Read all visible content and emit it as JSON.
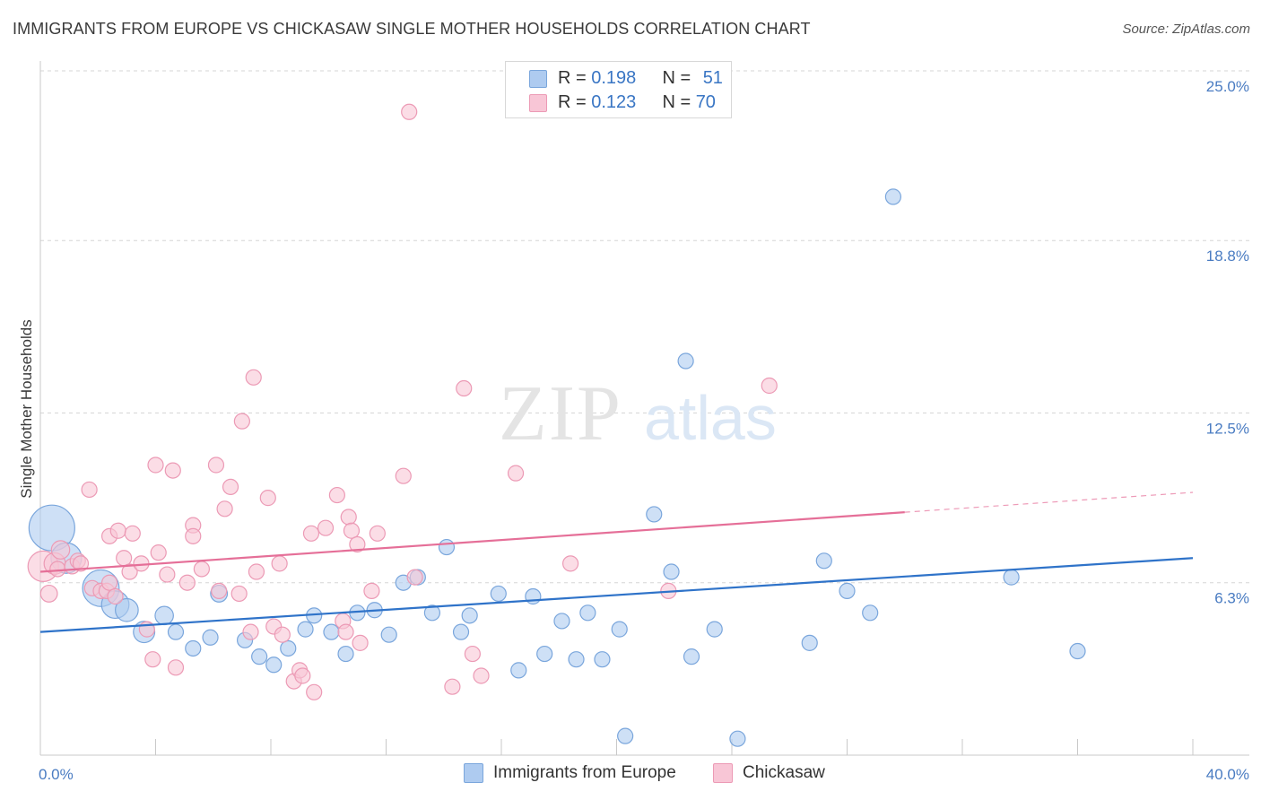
{
  "header": {
    "title": "IMMIGRANTS FROM EUROPE VS CHICKASAW SINGLE MOTHER HOUSEHOLDS CORRELATION CHART",
    "source": "Source: ZipAtlas.com"
  },
  "watermark": {
    "zip": "ZIP",
    "atlas": "atlas"
  },
  "legend_top": {
    "rows": [
      {
        "r_label": "R = ",
        "r_value": "0.198",
        "n_label": "N = ",
        "n_value": "51"
      },
      {
        "r_label": "R = ",
        "r_value": "0.123",
        "n_label": "N = ",
        "n_value": "70"
      }
    ]
  },
  "legend_bottom": {
    "items": [
      "Immigrants from Europe",
      "Chickasaw"
    ]
  },
  "colors": {
    "blue_fill": "#aecbf0",
    "blue_stroke": "#7aa6dc",
    "blue_line": "#2f73c9",
    "pink_fill": "#f8c6d6",
    "pink_stroke": "#ec9ab5",
    "pink_line": "#e56f98",
    "tick_text": "#4a7cc2",
    "grid": "#d6d6d6"
  },
  "chart_data": {
    "type": "scatter",
    "title": "IMMIGRANTS FROM EUROPE VS CHICKASAW SINGLE MOTHER HOUSEHOLDS CORRELATION CHART",
    "xlabel": "",
    "ylabel": "Single Mother Households",
    "xlim": [
      0,
      40
    ],
    "ylim": [
      0,
      25
    ],
    "x_tick_labels": [
      "0.0%",
      "40.0%"
    ],
    "y_ticks": [
      6.3,
      12.5,
      18.8,
      25.0
    ],
    "y_tick_labels": [
      "6.3%",
      "12.5%",
      "18.8%",
      "25.0%"
    ],
    "grid": "horizontal dashed",
    "legend_position": "top-center",
    "series": [
      {
        "name": "Immigrants from Europe",
        "r": 0.198,
        "n": 51,
        "trend": {
          "x": [
            0,
            40
          ],
          "y": [
            4.5,
            7.2
          ],
          "dashed_from": null
        },
        "points": [
          [
            0.4,
            8.3,
            3
          ],
          [
            0.9,
            7.2,
            2
          ],
          [
            2.1,
            6.1,
            2.4
          ],
          [
            2.6,
            5.5,
            1.8
          ],
          [
            3.0,
            5.3,
            1.5
          ],
          [
            3.6,
            4.5,
            1.4
          ],
          [
            4.3,
            5.1,
            1.2
          ],
          [
            4.7,
            4.5,
            1
          ],
          [
            5.3,
            3.9,
            1
          ],
          [
            5.9,
            4.3,
            1
          ],
          [
            6.2,
            5.9,
            1.1
          ],
          [
            7.1,
            4.2,
            1
          ],
          [
            7.6,
            3.6,
            1
          ],
          [
            8.1,
            3.3,
            1
          ],
          [
            8.6,
            3.9,
            1
          ],
          [
            9.2,
            4.6,
            1
          ],
          [
            9.5,
            5.1,
            1
          ],
          [
            10.1,
            4.5,
            1
          ],
          [
            10.6,
            3.7,
            1
          ],
          [
            11.0,
            5.2,
            1
          ],
          [
            11.6,
            5.3,
            1
          ],
          [
            12.1,
            4.4,
            1
          ],
          [
            12.6,
            6.3,
            1
          ],
          [
            13.1,
            6.5,
            1
          ],
          [
            13.6,
            5.2,
            1
          ],
          [
            14.1,
            7.6,
            1
          ],
          [
            14.6,
            4.5,
            1
          ],
          [
            14.9,
            5.1,
            1
          ],
          [
            15.9,
            5.9,
            1
          ],
          [
            16.6,
            3.1,
            1
          ],
          [
            17.1,
            5.8,
            1
          ],
          [
            17.5,
            3.7,
            1
          ],
          [
            18.1,
            4.9,
            1
          ],
          [
            18.6,
            3.5,
            1
          ],
          [
            19.0,
            5.2,
            1
          ],
          [
            19.5,
            3.5,
            1
          ],
          [
            20.1,
            4.6,
            1
          ],
          [
            20.3,
            0.7,
            1
          ],
          [
            21.3,
            8.8,
            1
          ],
          [
            21.9,
            6.7,
            1
          ],
          [
            22.4,
            14.4,
            1
          ],
          [
            22.6,
            3.6,
            1
          ],
          [
            23.4,
            4.6,
            1
          ],
          [
            24.2,
            0.6,
            1
          ],
          [
            26.7,
            4.1,
            1
          ],
          [
            27.2,
            7.1,
            1
          ],
          [
            28.0,
            6.0,
            1
          ],
          [
            28.8,
            5.2,
            1
          ],
          [
            29.6,
            20.4,
            1
          ],
          [
            33.7,
            6.5,
            1
          ],
          [
            36.0,
            3.8,
            1
          ]
        ]
      },
      {
        "name": "Chickasaw",
        "r": 0.123,
        "n": 70,
        "trend": {
          "x": [
            0,
            40
          ],
          "y": [
            6.7,
            9.6
          ],
          "dashed_from": 30
        },
        "points": [
          [
            0.1,
            6.9,
            2
          ],
          [
            0.3,
            5.9,
            1.1
          ],
          [
            0.5,
            7.0,
            1.4
          ],
          [
            0.6,
            6.8,
            1
          ],
          [
            0.7,
            7.5,
            1.2
          ],
          [
            1.1,
            6.9,
            1
          ],
          [
            1.3,
            7.1,
            1
          ],
          [
            1.4,
            7.0,
            1
          ],
          [
            1.7,
            9.7,
            1
          ],
          [
            1.8,
            6.1,
            1
          ],
          [
            2.1,
            6.0,
            1
          ],
          [
            2.3,
            6.0,
            1
          ],
          [
            2.4,
            6.3,
            1
          ],
          [
            2.4,
            8.0,
            1
          ],
          [
            2.6,
            5.8,
            1
          ],
          [
            2.7,
            8.2,
            1
          ],
          [
            2.9,
            7.2,
            1
          ],
          [
            3.1,
            6.7,
            1
          ],
          [
            3.2,
            8.1,
            1
          ],
          [
            3.5,
            7.0,
            1
          ],
          [
            3.7,
            4.6,
            1
          ],
          [
            3.9,
            3.5,
            1
          ],
          [
            4.0,
            10.6,
            1
          ],
          [
            4.1,
            7.4,
            1
          ],
          [
            4.4,
            6.6,
            1
          ],
          [
            4.6,
            10.4,
            1
          ],
          [
            4.7,
            3.2,
            1
          ],
          [
            5.1,
            6.3,
            1
          ],
          [
            5.3,
            8.4,
            1
          ],
          [
            5.3,
            8.0,
            1
          ],
          [
            5.6,
            6.8,
            1
          ],
          [
            6.1,
            10.6,
            1
          ],
          [
            6.2,
            6.0,
            1
          ],
          [
            6.4,
            9.0,
            1
          ],
          [
            6.6,
            9.8,
            1
          ],
          [
            6.9,
            5.9,
            1
          ],
          [
            7.0,
            12.2,
            1
          ],
          [
            7.3,
            4.5,
            1
          ],
          [
            7.4,
            13.8,
            1
          ],
          [
            7.5,
            6.7,
            1
          ],
          [
            7.9,
            9.4,
            1
          ],
          [
            8.1,
            4.7,
            1
          ],
          [
            8.3,
            7.0,
            1
          ],
          [
            8.4,
            4.4,
            1
          ],
          [
            8.8,
            2.7,
            1
          ],
          [
            9.0,
            3.1,
            1
          ],
          [
            9.1,
            2.9,
            1
          ],
          [
            9.4,
            8.1,
            1
          ],
          [
            9.5,
            2.3,
            1
          ],
          [
            9.9,
            8.3,
            1
          ],
          [
            10.3,
            9.5,
            1
          ],
          [
            10.5,
            4.9,
            1
          ],
          [
            10.6,
            4.5,
            1
          ],
          [
            10.7,
            8.7,
            1
          ],
          [
            10.8,
            8.2,
            1
          ],
          [
            11.0,
            7.7,
            1
          ],
          [
            11.1,
            4.1,
            1
          ],
          [
            11.5,
            6.0,
            1
          ],
          [
            11.7,
            8.1,
            1
          ],
          [
            12.6,
            10.2,
            1
          ],
          [
            12.8,
            23.5,
            1
          ],
          [
            13.0,
            6.5,
            1
          ],
          [
            14.3,
            2.5,
            1
          ],
          [
            14.7,
            13.4,
            1
          ],
          [
            15.0,
            3.7,
            1
          ],
          [
            15.3,
            2.9,
            1
          ],
          [
            16.5,
            10.3,
            1
          ],
          [
            18.4,
            7.0,
            1
          ],
          [
            21.8,
            6.0,
            1
          ],
          [
            25.3,
            13.5,
            1
          ]
        ]
      }
    ]
  }
}
